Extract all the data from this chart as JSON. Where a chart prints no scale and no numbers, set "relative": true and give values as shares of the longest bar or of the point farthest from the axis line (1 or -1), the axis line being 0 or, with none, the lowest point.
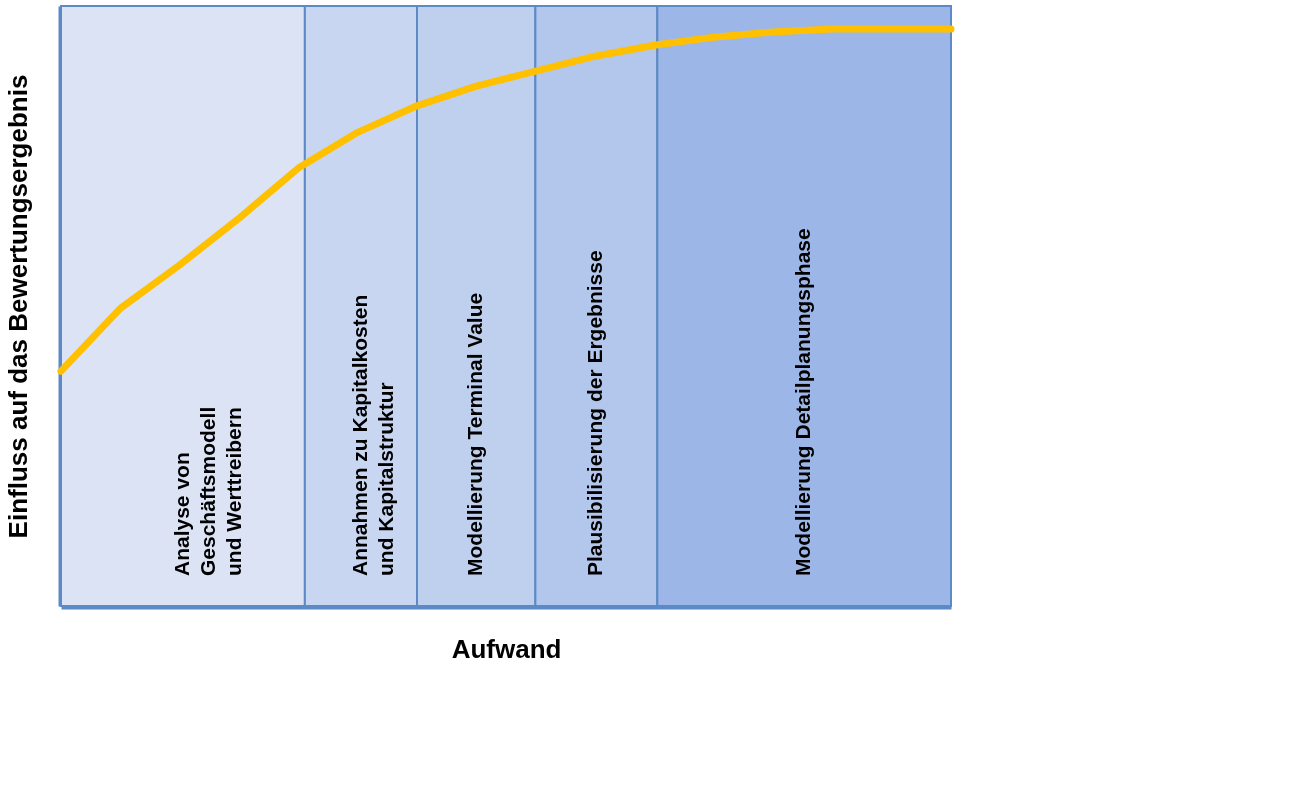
{
  "chart_data": {
    "type": "line",
    "relative": true,
    "xlabel": "Aufwand",
    "ylabel": "Einfluss auf das Bewertungsergebnis",
    "tick_labels": false,
    "marker": "none",
    "line_style": "solid",
    "categories": [
      null,
      null,
      null,
      null,
      null,
      null,
      null,
      null,
      null,
      null,
      null,
      null,
      null,
      null,
      null,
      null
    ],
    "series": [
      {
        "color": "#ffc000",
        "values": [
          0.407,
          0.516,
          0.591,
          0.672,
          0.759,
          0.821,
          0.867,
          0.901,
          0.927,
          0.953,
          0.972,
          0.986,
          0.995,
          1,
          1,
          1
        ]
      }
    ],
    "annotations": [
      "Analyse von\nGeschäftsmodell\nund Werttreibern",
      "Annahmen zu Kapitalkosten\nund Kapitalstruktur",
      "Modellierung Terminal Value",
      "Plausibilisierung der Ergebnisse",
      "Modellierung Detailplanungsphase"
    ]
  }
}
